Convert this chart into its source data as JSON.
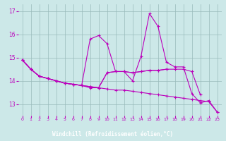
{
  "xlabel": "Windchill (Refroidissement éolien,°C)",
  "xlim": [
    -0.5,
    23.5
  ],
  "ylim": [
    12.5,
    17.3
  ],
  "yticks": [
    13,
    14,
    15,
    16,
    17
  ],
  "xticks": [
    0,
    1,
    2,
    3,
    4,
    5,
    6,
    7,
    8,
    9,
    10,
    11,
    12,
    13,
    14,
    15,
    16,
    17,
    18,
    19,
    20,
    21,
    22,
    23
  ],
  "background_color": "#cce8e8",
  "line_color": "#bb00bb",
  "grid_color": "#99bbbb",
  "xlabel_bg": "#330033",
  "xlabel_fg": "#ffffff",
  "lines": [
    [
      14.9,
      14.5,
      14.2,
      14.1,
      14.0,
      13.9,
      13.85,
      13.8,
      15.8,
      15.95,
      15.6,
      14.4,
      14.4,
      14.0,
      15.05,
      16.9,
      16.35,
      14.8,
      14.6,
      14.6,
      13.45,
      13.05,
      13.15,
      12.65
    ],
    [
      14.9,
      14.5,
      14.2,
      14.1,
      14.0,
      13.9,
      13.85,
      13.8,
      13.75,
      13.7,
      14.35,
      14.4,
      14.4,
      14.35,
      14.4,
      14.45,
      14.45,
      14.5,
      14.5,
      14.5,
      14.4,
      13.4,
      null,
      null
    ],
    [
      14.9,
      14.5,
      14.2,
      14.1,
      14.0,
      13.9,
      13.85,
      13.8,
      13.75,
      13.7,
      14.35,
      14.4,
      14.4,
      14.35,
      14.4,
      14.45,
      14.45,
      14.5,
      null,
      null,
      null,
      null,
      null,
      null
    ],
    [
      14.9,
      14.5,
      14.2,
      14.1,
      14.0,
      13.9,
      13.85,
      13.8,
      13.7,
      13.7,
      13.65,
      13.6,
      13.6,
      13.55,
      13.5,
      13.45,
      13.4,
      13.35,
      13.3,
      13.25,
      13.2,
      13.15,
      13.1,
      12.65
    ]
  ]
}
